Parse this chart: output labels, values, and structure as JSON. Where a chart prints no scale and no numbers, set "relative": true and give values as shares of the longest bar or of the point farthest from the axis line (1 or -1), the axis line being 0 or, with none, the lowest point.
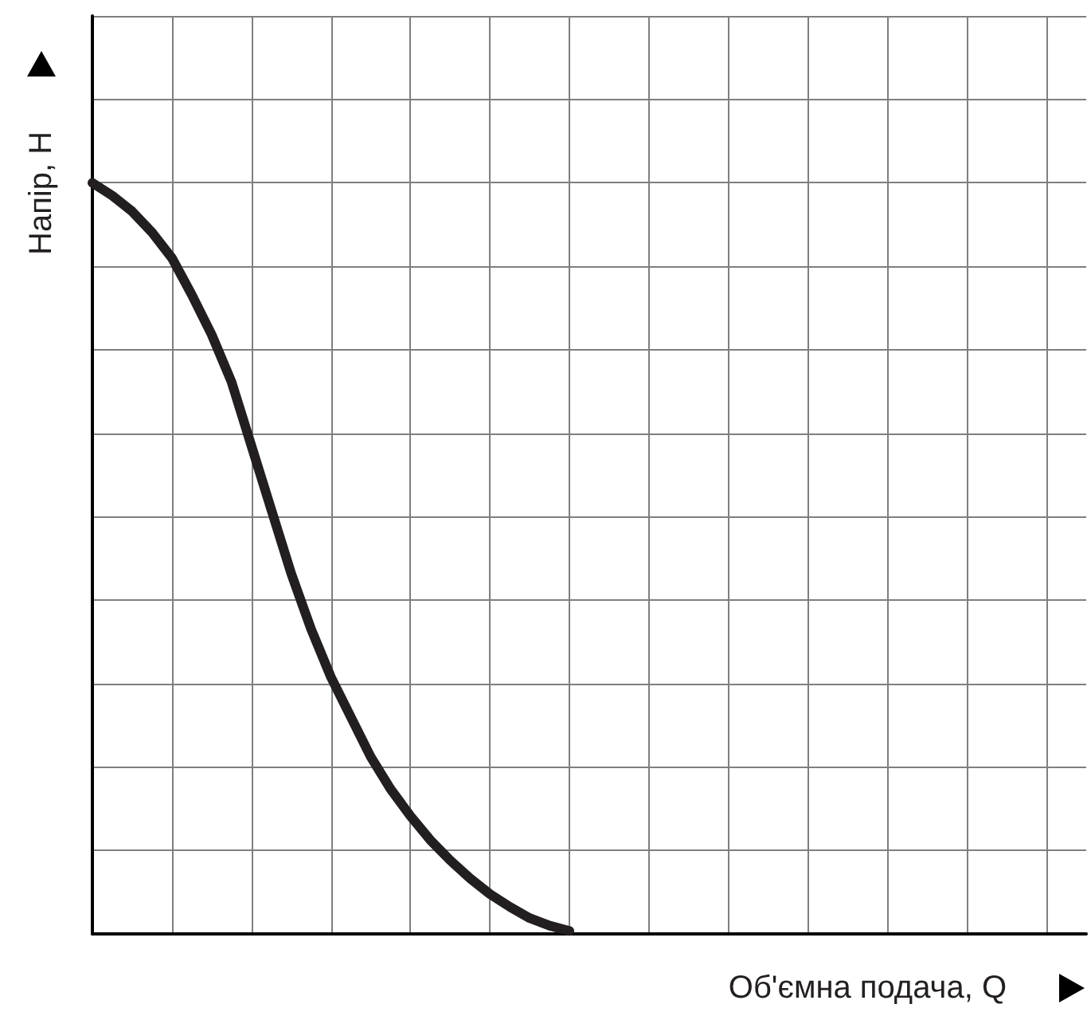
{
  "chart_data": {
    "type": "line",
    "relative": true,
    "xlabel": "Об'ємна подача, Q",
    "ylabel": "Напір, H",
    "grid": true,
    "marker": "none",
    "line_style": "solid",
    "categories": [
      null,
      null,
      null,
      null,
      null,
      null,
      null,
      null,
      null,
      null,
      null,
      null,
      null,
      null,
      null,
      null,
      null,
      null,
      null,
      null,
      null,
      null,
      null,
      null,
      null,
      null,
      null,
      null,
      null,
      null,
      null,
      null,
      null,
      null,
      null,
      null,
      null,
      null,
      null,
      null,
      null,
      null,
      null,
      null,
      null,
      null,
      null,
      null,
      null,
      null,
      null
    ],
    "series": [
      {
        "color": "#231f20",
        "values": [
          1,
          0.983,
          0.962,
          0.934,
          0.9,
          0.851,
          0.798,
          0.735,
          0.65,
          0.565,
          0.48,
          0.406,
          0.342,
          0.289,
          0.236,
          0.193,
          0.157,
          0.125,
          0.098,
          0.074,
          0.053,
          0.036,
          0.021,
          0.011,
          0.004,
          null,
          null,
          null,
          null,
          null,
          null,
          null,
          null,
          null,
          null,
          null,
          null,
          null,
          null,
          null,
          null,
          null,
          null,
          null,
          null,
          null,
          null,
          null,
          null,
          null,
          null
        ]
      }
    ]
  }
}
